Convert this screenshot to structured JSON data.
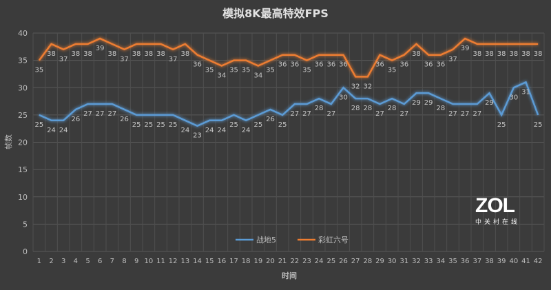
{
  "chart_data": {
    "type": "line",
    "title": "模拟8K最高特效FPS",
    "xlabel": "时间",
    "ylabel": "帧数",
    "x": [
      1,
      2,
      3,
      4,
      5,
      6,
      7,
      8,
      9,
      10,
      11,
      12,
      13,
      14,
      15,
      16,
      17,
      18,
      19,
      20,
      21,
      22,
      23,
      24,
      25,
      26,
      27,
      28,
      29,
      30,
      31,
      32,
      33,
      34,
      35,
      36,
      37,
      38,
      39,
      40,
      41,
      42
    ],
    "ylim": [
      0,
      40
    ],
    "yticks": [
      0,
      5,
      10,
      15,
      20,
      25,
      30,
      35,
      40
    ],
    "grid": true,
    "legend": "bottom",
    "series": [
      {
        "name": "战地5",
        "color": "#5b9bd5",
        "values": [
          25,
          24,
          24,
          26,
          27,
          27,
          27,
          26,
          25,
          25,
          25,
          25,
          24,
          23,
          24,
          24,
          25,
          24,
          25,
          26,
          25,
          27,
          27,
          28,
          27,
          30,
          28,
          28,
          27,
          28,
          27,
          29,
          29,
          28,
          27,
          27,
          27,
          29,
          25,
          30,
          31,
          25
        ]
      },
      {
        "name": "彩虹六号",
        "color": "#ed7d31",
        "values": [
          35,
          38,
          37,
          38,
          38,
          39,
          38,
          37,
          38,
          38,
          38,
          37,
          38,
          36,
          35,
          34,
          35,
          35,
          34,
          35,
          36,
          36,
          35,
          36,
          36,
          36,
          32,
          32,
          36,
          35,
          36,
          38,
          36,
          36,
          37,
          39,
          38,
          38,
          38,
          38,
          38,
          38
        ]
      }
    ]
  },
  "watermark": {
    "logo": "ZOL",
    "subtitle": "中关村在线"
  }
}
